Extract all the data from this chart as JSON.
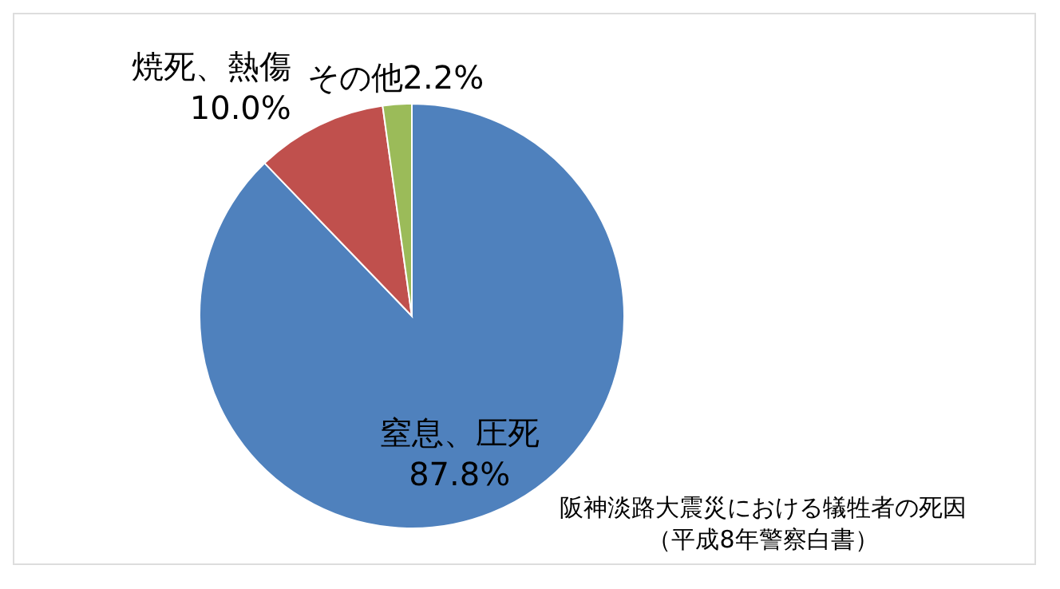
{
  "chart_data": {
    "type": "pie",
    "categories": [
      "窒息、圧死",
      "焼死、熱傷",
      "その他"
    ],
    "values": [
      87.8,
      10.0,
      2.2
    ],
    "colors": [
      "#4f81bd",
      "#c0504d",
      "#9bbb59"
    ],
    "value_labels": [
      "87.8%",
      "10.0%",
      "2.2%"
    ],
    "legend": false,
    "annotations": [
      "阪神淡路大震災における犠牲者の死因",
      "（平成8年警察白書）"
    ]
  }
}
